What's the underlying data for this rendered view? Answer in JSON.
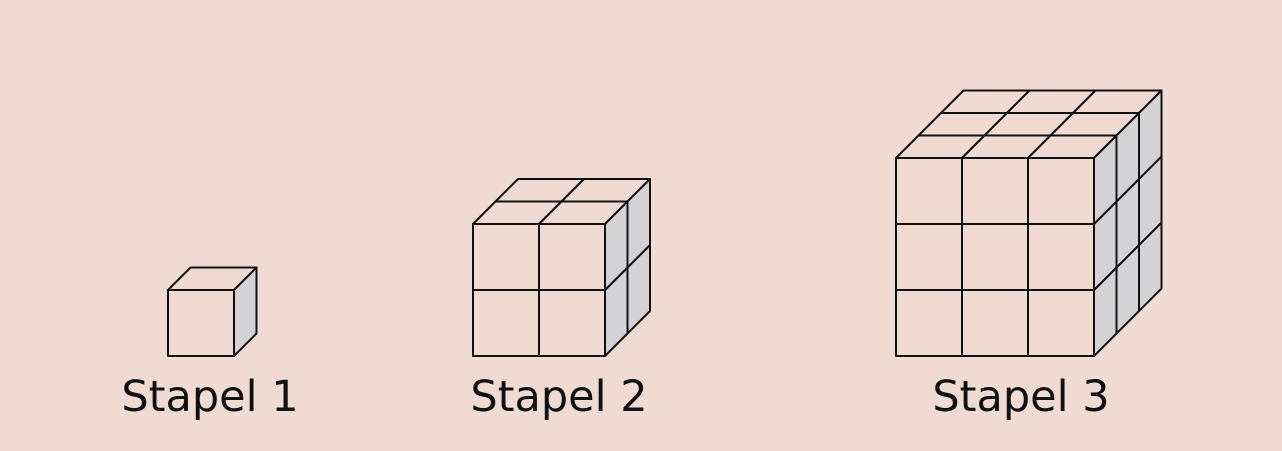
{
  "colors": {
    "background": "#efdbd2",
    "front_face": "#efdbd2",
    "top_face": "#efdbd2",
    "side_face": "#d3d3d6",
    "edge": "#111111"
  },
  "stacks": [
    {
      "label": "Stapel 1",
      "size": 1
    },
    {
      "label": "Stapel 2",
      "size": 2
    },
    {
      "label": "Stapel 3",
      "size": 3
    }
  ]
}
